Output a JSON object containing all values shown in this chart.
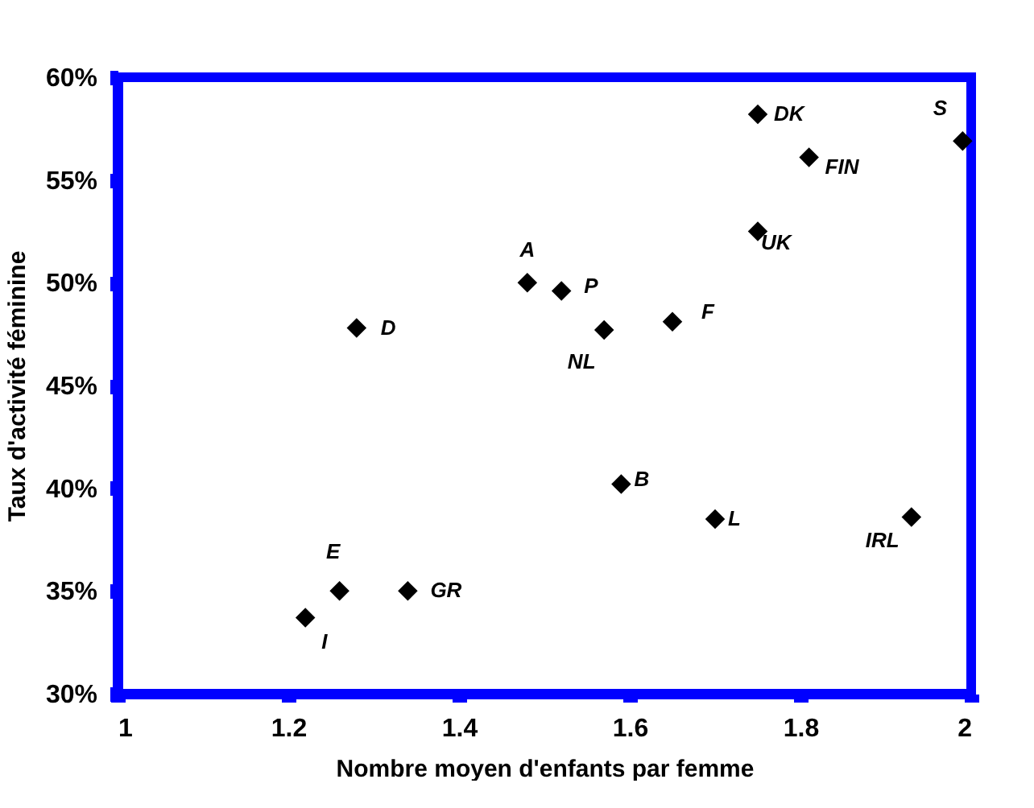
{
  "chart_data": {
    "type": "scatter",
    "xlabel": "Nombre moyen d'enfants par femme",
    "ylabel": "Taux d'activité féminine",
    "x": [
      1.28,
      1.75,
      1.81,
      1.99,
      1.75,
      1.48,
      1.52,
      1.57,
      1.65,
      1.22,
      1.26,
      1.34,
      1.59,
      1.7,
      1.93
    ],
    "series": [
      {
        "color": "#000000",
        "values": [
          47.8,
          58.2,
          56.1,
          56.9,
          52.5,
          50.0,
          49.6,
          47.7,
          48.1,
          33.7,
          35.0,
          35.0,
          40.2,
          38.5,
          38.6
        ]
      }
    ],
    "annotations": [
      {
        "text": "D",
        "x": 1.28,
        "y": 47.8
      },
      {
        "text": "DK",
        "x": 1.75,
        "y": 58.2
      },
      {
        "text": "FIN",
        "x": 1.81,
        "y": 56.1
      },
      {
        "text": "S",
        "x": 1.99,
        "y": 56.9
      },
      {
        "text": "UK",
        "x": 1.75,
        "y": 52.5
      },
      {
        "text": "A",
        "x": 1.48,
        "y": 50.0
      },
      {
        "text": "P",
        "x": 1.52,
        "y": 49.6
      },
      {
        "text": "NL",
        "x": 1.57,
        "y": 47.7
      },
      {
        "text": "F",
        "x": 1.65,
        "y": 48.1
      },
      {
        "text": "I",
        "x": 1.22,
        "y": 33.7
      },
      {
        "text": "E",
        "x": 1.26,
        "y": 35.0
      },
      {
        "text": "GR",
        "x": 1.34,
        "y": 35.0
      },
      {
        "text": "B",
        "x": 1.59,
        "y": 40.2
      },
      {
        "text": "L",
        "x": 1.7,
        "y": 38.5
      },
      {
        "text": "IRL",
        "x": 1.93,
        "y": 38.6
      }
    ],
    "xlim": [
      1,
      2
    ],
    "xticks": [
      1,
      1.2,
      1.4,
      1.6,
      1.8,
      2
    ],
    "ylim": [
      30,
      60
    ],
    "yticks": [
      {
        "value": 30,
        "label": "30%"
      },
      {
        "value": 35,
        "label": "35%"
      },
      {
        "value": 40,
        "label": "40%"
      },
      {
        "value": 45,
        "label": "45%"
      },
      {
        "value": 50,
        "label": "50%"
      },
      {
        "value": 55,
        "label": "55%"
      },
      {
        "value": 60,
        "label": "60%"
      }
    ],
    "grid": false,
    "marker": "diamond"
  }
}
